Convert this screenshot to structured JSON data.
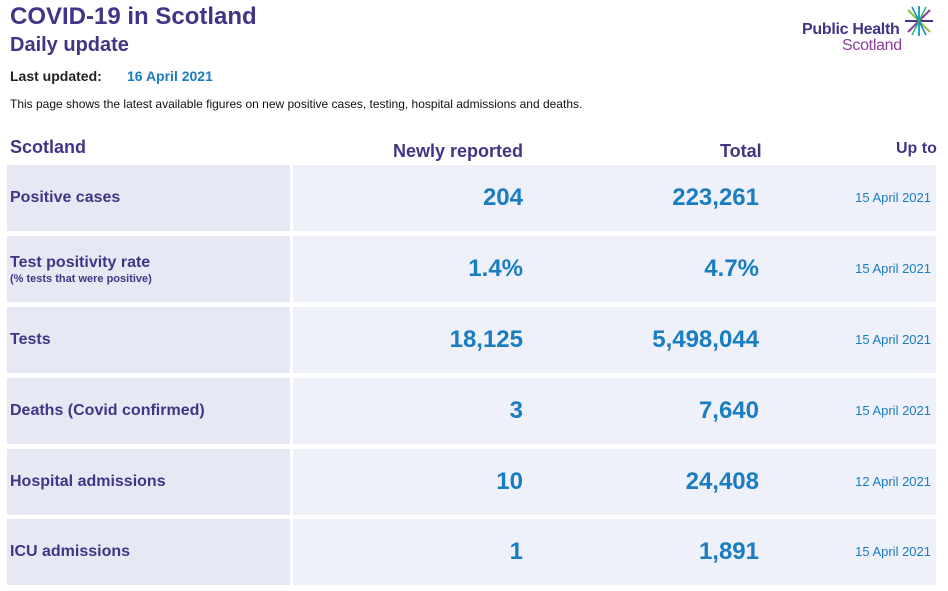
{
  "header": {
    "title": "COVID-19 in Scotland",
    "subtitle": "Daily update",
    "logo_line1": "Public Health",
    "logo_line2": "Scotland"
  },
  "updated": {
    "label": "Last updated:",
    "date": "16 April 2021"
  },
  "intro": "This page shows the latest available figures on new positive cases, testing, hospital admissions and deaths.",
  "table": {
    "columns": {
      "region": "Scotland",
      "newly": "Newly reported",
      "total": "Total",
      "upto": "Up to"
    },
    "rows": [
      {
        "label": "Positive cases",
        "sublabel": "",
        "newly": "204",
        "total": "223,261",
        "upto": "15 April 2021"
      },
      {
        "label": "Test positivity rate",
        "sublabel": "(% tests that were positive)",
        "newly": "1.4%",
        "total": "4.7%",
        "upto": "15 April 2021"
      },
      {
        "label": "Tests",
        "sublabel": "",
        "newly": "18,125",
        "total": "5,498,044",
        "upto": "15 April 2021"
      },
      {
        "label": "Deaths (Covid confirmed)",
        "sublabel": "",
        "newly": "3",
        "total": "7,640",
        "upto": "15 April 2021"
      },
      {
        "label": "Hospital admissions",
        "sublabel": "",
        "newly": "10",
        "total": "24,408",
        "upto": "12 April 2021"
      },
      {
        "label": "ICU admissions",
        "sublabel": "",
        "newly": "1",
        "total": "1,891",
        "upto": "15 April 2021"
      }
    ]
  },
  "colors": {
    "title_purple": "#3f3685",
    "value_blue": "#1a7cc1",
    "row_label_bg": "#e6e9f4",
    "row_data_bg": "#eef1f9",
    "logo_magenta": "#8a3f96"
  },
  "icons": {
    "logo": "public-health-scotland-star-icon"
  }
}
